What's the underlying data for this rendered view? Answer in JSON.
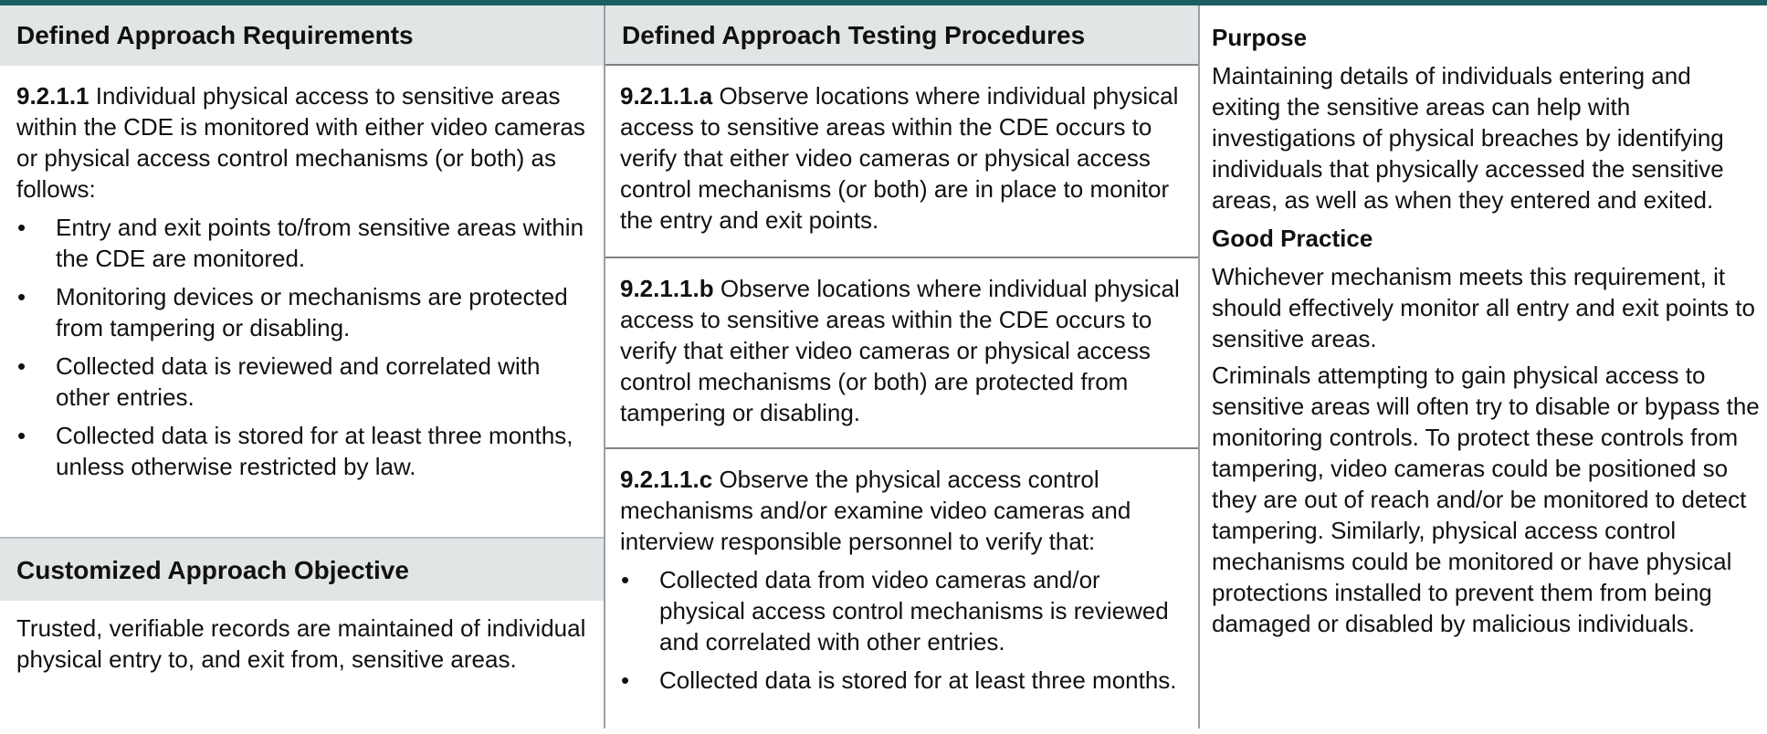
{
  "columns": {
    "requirements": {
      "header": "Defined Approach Requirements",
      "req_id": "9.2.1.1",
      "req_text": "Individual physical access to sensitive areas within the CDE is monitored with either video cameras or physical access control mechanisms (or both) as follows:",
      "bullets": [
        "Entry and exit points to/from sensitive areas within the CDE are monitored.",
        "Monitoring devices or mechanisms are protected from tampering or disabling.",
        "Collected data is reviewed and correlated with other entries.",
        "Collected data is stored for at least three months, unless otherwise restricted by law."
      ],
      "objective_header": "Customized Approach Objective",
      "objective_text": "Trusted, verifiable records are maintained of individual physical entry to, and exit from, sensitive areas."
    },
    "testing": {
      "header": "Defined Approach Testing Procedures",
      "procedures": [
        {
          "id": "9.2.1.1.a",
          "text": "Observe locations where individual physical access to sensitive areas within the CDE occurs to verify that either video cameras or physical access control mechanisms (or both) are in place to monitor the entry and exit points."
        },
        {
          "id": "9.2.1.1.b",
          "text": "Observe locations where individual physical access to sensitive areas within the CDE occurs to verify that either video cameras or physical access control mechanisms (or both) are protected from tampering or disabling."
        },
        {
          "id": "9.2.1.1.c",
          "text": "Observe the physical access control mechanisms and/or examine video cameras and interview responsible personnel to verify that:",
          "bullets": [
            "Collected data from video cameras and/or physical access control mechanisms is reviewed and correlated with other entries.",
            "Collected data is stored for at least three months."
          ]
        }
      ]
    },
    "guidance": {
      "purpose_header": "Purpose",
      "purpose_text": "Maintaining details of individuals entering and exiting the sensitive areas can help with investigations of physical breaches by identifying individuals that physically accessed the sensitive areas, as well as when they entered and exited.",
      "good_practice_header": "Good Practice",
      "good_practice_paragraphs": [
        "Whichever mechanism meets this requirement, it should effectively monitor all entry and exit points to sensitive areas.",
        "Criminals attempting to gain physical access to sensitive areas will often try to disable or bypass the monitoring controls. To protect these controls from tampering, video cameras could be positioned so they are out of reach and/or be monitored to detect tampering. Similarly, physical access control mechanisms could be monitored or have physical protections installed to prevent them from being damaged or disabled by malicious individuals."
      ]
    }
  },
  "colors": {
    "top_bar": "#1b5e63",
    "header_background": "#e2e5e6",
    "rule": "#7d8285"
  }
}
